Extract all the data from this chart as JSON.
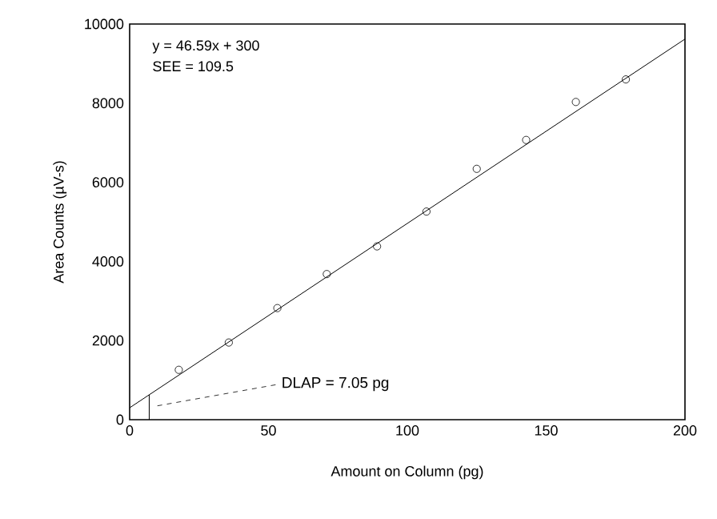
{
  "chart_data": {
    "type": "scatter",
    "xlabel": "Amount on Column (pg)",
    "ylabel": "Area Counts (µV-s)",
    "xlim": [
      0,
      200
    ],
    "ylim": [
      0,
      10000
    ],
    "xticks": [
      0,
      50,
      100,
      150,
      200
    ],
    "yticks": [
      0,
      2000,
      4000,
      6000,
      8000,
      10000
    ],
    "marker": "circle",
    "grid": false,
    "series": [
      {
        "color": "#000000",
        "x": [
          17.7,
          35.7,
          53.2,
          71.0,
          89.1,
          106.9,
          125.0,
          142.8,
          160.7,
          178.7
        ],
        "values": [
          1260,
          1950,
          2820,
          3680,
          4380,
          5260,
          6340,
          7070,
          8030,
          8600
        ]
      },
      {
        "type": "line",
        "color": "#000000",
        "marker": "none",
        "x": [
          0,
          200
        ],
        "values": [
          300,
          9620
        ]
      },
      {
        "type": "line",
        "color": "#000000",
        "marker": "none",
        "x": [
          7.05,
          7.05
        ],
        "values": [
          0,
          630
        ]
      }
    ],
    "annotations": [
      "y = 46.59x + 300",
      "SEE = 109.5",
      "DLAP = 7.05 pg"
    ]
  }
}
